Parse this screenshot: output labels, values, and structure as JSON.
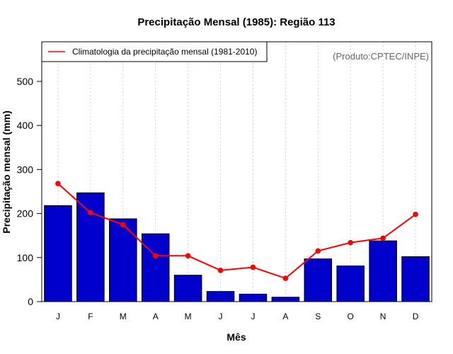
{
  "chart_data": {
    "type": "bar",
    "title": "Precipitação Mensal (1985): Região 113",
    "xlabel": "Mês",
    "ylabel": "Precipitação mensal (mm)",
    "ylim": [
      0,
      590
    ],
    "yticks": [
      0,
      100,
      200,
      300,
      400,
      500
    ],
    "grid": "vertical dotted",
    "credit": "(Produto:CPTEC/INPE)",
    "legend_position": "top-left",
    "categories": [
      "J",
      "F",
      "M",
      "A",
      "M",
      "J",
      "J",
      "A",
      "S",
      "O",
      "N",
      "D"
    ],
    "series": [
      {
        "name": "Precipitação mensal 1985",
        "type": "bar",
        "color": "#0000cc",
        "values": [
          218,
          247,
          188,
          154,
          60,
          23,
          17,
          10,
          97,
          81,
          138,
          102
        ]
      },
      {
        "name": "Climatologia da precipitação mensal (1981-2010)",
        "type": "line",
        "color": "#ff0000",
        "values": [
          268,
          202,
          175,
          104,
          104,
          71,
          78,
          53,
          115,
          134,
          144,
          198
        ]
      }
    ]
  }
}
